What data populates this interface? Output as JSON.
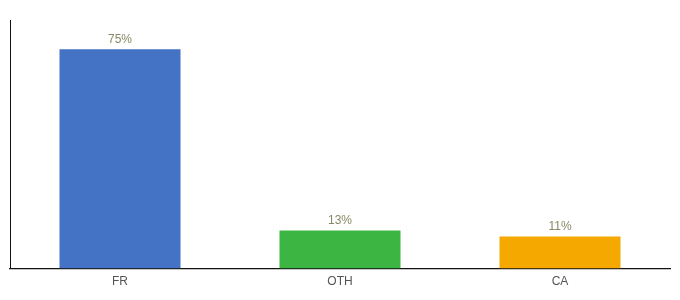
{
  "chart_data": {
    "type": "bar",
    "categories": [
      "FR",
      "OTH",
      "CA"
    ],
    "values": [
      75,
      13,
      11
    ],
    "value_labels": [
      "75%",
      "13%",
      "11%"
    ],
    "colors": [
      "#4472c4",
      "#3cb542",
      "#f5a800"
    ],
    "ylim": [
      0,
      85
    ],
    "data_labels": true,
    "tick_labels": "x",
    "grid": false
  }
}
